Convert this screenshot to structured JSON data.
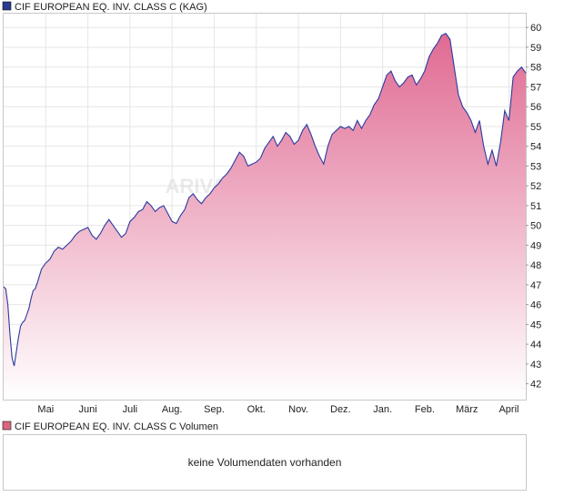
{
  "chart_data": [
    {
      "type": "area",
      "legend": "CIF EUROPEAN EQ. INV. CLASS C (KAG)",
      "legend_color": "#2a3a8f",
      "line_color": "#2a3aa0",
      "fill_top_color": "#e06a93",
      "fill_bottom_color": "#ffffff",
      "watermark": "ARIVA",
      "y_ticks": [
        42,
        43,
        44,
        45,
        46,
        47,
        48,
        49,
        50,
        51,
        52,
        53,
        54,
        55,
        56,
        57,
        58,
        59,
        60
      ],
      "ylim": [
        41.2,
        60.7
      ],
      "x_ticks": [
        {
          "label": "Mai",
          "t": 1.0
        },
        {
          "label": "Juni",
          "t": 2.0
        },
        {
          "label": "Juli",
          "t": 3.0
        },
        {
          "label": "Aug.",
          "t": 4.0
        },
        {
          "label": "Sep.",
          "t": 5.0
        },
        {
          "label": "Okt.",
          "t": 6.0
        },
        {
          "label": "Nov.",
          "t": 7.0
        },
        {
          "label": "Dez.",
          "t": 8.0
        },
        {
          "label": "Jan.",
          "t": 9.0
        },
        {
          "label": "Feb.",
          "t": 10.0
        },
        {
          "label": "März",
          "t": 11.0
        },
        {
          "label": "April",
          "t": 12.0
        }
      ],
      "xlim": [
        0.0,
        12.4
      ],
      "grid": true,
      "series": [
        {
          "t": [
            0.0,
            0.05,
            0.1,
            0.15,
            0.2,
            0.25,
            0.3,
            0.35,
            0.4,
            0.45,
            0.5,
            0.55,
            0.6,
            0.65,
            0.7,
            0.75,
            0.8,
            0.9,
            1.0,
            1.1,
            1.2,
            1.3,
            1.4,
            1.5,
            1.6,
            1.7,
            1.8,
            1.9,
            2.0,
            2.1,
            2.2,
            2.3,
            2.4,
            2.5,
            2.6,
            2.7,
            2.8,
            2.9,
            3.0,
            3.1,
            3.2,
            3.3,
            3.4,
            3.5,
            3.6,
            3.7,
            3.8,
            3.9,
            4.0,
            4.1,
            4.2,
            4.3,
            4.4,
            4.5,
            4.6,
            4.7,
            4.8,
            4.9,
            5.0,
            5.1,
            5.2,
            5.3,
            5.4,
            5.5,
            5.6,
            5.7,
            5.8,
            5.9,
            6.0,
            6.1,
            6.2,
            6.3,
            6.4,
            6.5,
            6.6,
            6.7,
            6.8,
            6.9,
            7.0,
            7.1,
            7.2,
            7.3,
            7.4,
            7.5,
            7.6,
            7.7,
            7.8,
            7.9,
            8.0,
            8.1,
            8.2,
            8.3,
            8.4,
            8.5,
            8.6,
            8.7,
            8.8,
            8.9,
            9.0,
            9.1,
            9.2,
            9.3,
            9.4,
            9.5,
            9.6,
            9.7,
            9.8,
            9.9,
            10.0,
            10.1,
            10.2,
            10.3,
            10.4,
            10.5,
            10.6,
            10.7,
            10.8,
            10.9,
            11.0,
            11.1,
            11.2,
            11.3,
            11.4,
            11.5,
            11.6,
            11.7,
            11.8,
            11.9,
            12.0,
            12.1,
            12.2,
            12.3,
            12.4
          ],
          "values": [
            46.9,
            46.8,
            46.0,
            44.5,
            43.3,
            42.9,
            43.6,
            44.3,
            44.9,
            45.1,
            45.2,
            45.5,
            45.8,
            46.3,
            46.7,
            46.8,
            47.1,
            47.8,
            48.1,
            48.3,
            48.7,
            48.9,
            48.8,
            49.0,
            49.2,
            49.5,
            49.7,
            49.8,
            49.9,
            49.5,
            49.3,
            49.6,
            50.0,
            50.3,
            50.0,
            49.7,
            49.4,
            49.6,
            50.2,
            50.4,
            50.7,
            50.8,
            51.2,
            51.0,
            50.7,
            50.9,
            51.0,
            50.6,
            50.2,
            50.1,
            50.5,
            50.8,
            51.4,
            51.6,
            51.3,
            51.1,
            51.4,
            51.6,
            51.9,
            52.1,
            52.4,
            52.6,
            52.9,
            53.3,
            53.7,
            53.5,
            53.0,
            53.1,
            53.2,
            53.4,
            53.9,
            54.2,
            54.5,
            54.0,
            54.3,
            54.7,
            54.5,
            54.1,
            54.3,
            54.8,
            55.1,
            54.6,
            54.0,
            53.5,
            53.1,
            54.0,
            54.6,
            54.8,
            55.0,
            54.9,
            55.0,
            54.8,
            55.3,
            54.9,
            55.3,
            55.6,
            56.1,
            56.4,
            57.0,
            57.6,
            57.8,
            57.3,
            57.0,
            57.2,
            57.5,
            57.6,
            57.1,
            57.4,
            57.8,
            58.5,
            58.9,
            59.2,
            59.6,
            59.7,
            59.4,
            58.0,
            56.6,
            56.0,
            55.7,
            55.3,
            54.7,
            55.3,
            54.0,
            53.1,
            53.8,
            53.0,
            54.2,
            55.8,
            55.3,
            57.5,
            57.8,
            58.0,
            57.7
          ]
        }
      ],
      "volume_legend": "CIF EUROPEAN EQ. INV. CLASS C Volumen",
      "volume_legend_color": "#d9667f",
      "volume_message": "keine Volumendaten vorhanden"
    }
  ]
}
